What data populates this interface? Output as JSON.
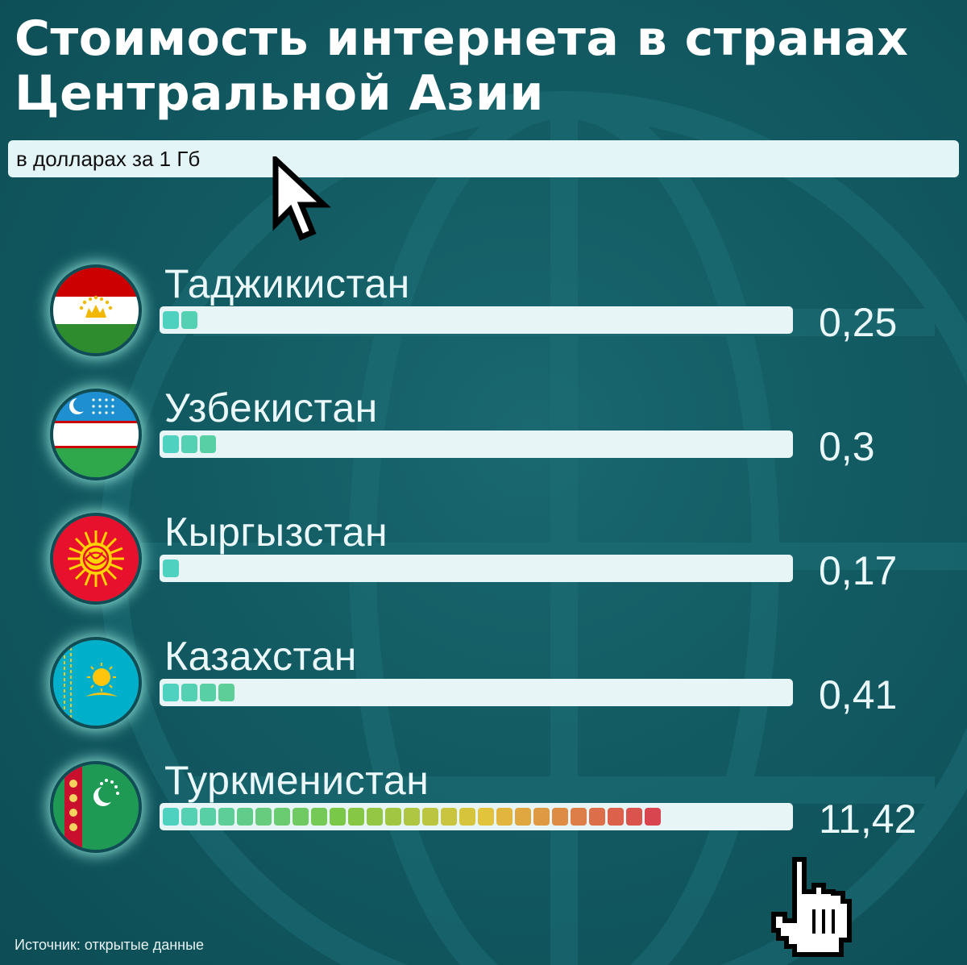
{
  "title": "Стоимость интернета в странах\nЦентральной Азии",
  "subtitle": "в долларах за 1 Гб",
  "source": "Источник: открытые данные",
  "colors": {
    "background": "#135c64",
    "track": "#e8f5f7",
    "segment_low": "#4fd1c0",
    "segment_high": "#d9454f"
  },
  "icons": [
    "arrow-cursor-icon",
    "hand-cursor-icon",
    "globe-background"
  ],
  "chart_data": {
    "type": "bar",
    "title": "Стоимость интернета в странах Центральной Азии",
    "subtitle": "в долларах за 1 Гб",
    "xlabel": "",
    "ylabel": "",
    "categories": [
      "Таджикистан",
      "Узбекистан",
      "Кыргызстан",
      "Казахстан",
      "Туркменистан"
    ],
    "values": [
      0.25,
      0.3,
      0.17,
      0.41,
      11.42
    ],
    "value_labels": [
      "0,25",
      "0,3",
      "0,17",
      "0,41",
      "11,42"
    ],
    "segments": [
      2,
      3,
      1,
      4,
      27
    ],
    "flags": [
      "tajikistan-flag",
      "uzbekistan-flag",
      "kyrgyzstan-flag",
      "kazakhstan-flag",
      "turkmenistan-flag"
    ],
    "grid": false,
    "legend": "none"
  }
}
